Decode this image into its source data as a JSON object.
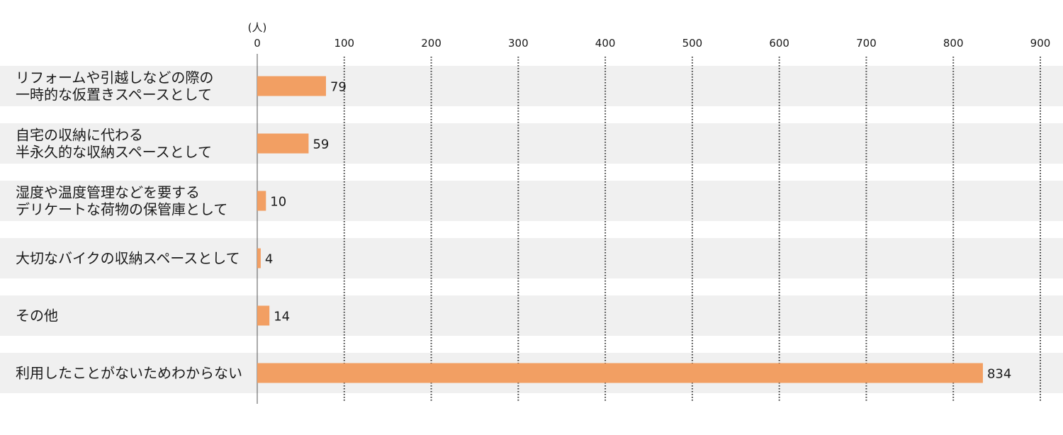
{
  "chart_data": {
    "type": "bar",
    "orientation": "horizontal",
    "unit": "(人)",
    "categories": [
      [
        "リフォームや引越しなどの際の",
        "一時的な仮置きスペースとして"
      ],
      [
        "自宅の収納に代わる",
        "半永久的な収納スペースとして"
      ],
      [
        "湿度や温度管理などを要する",
        "デリケートな荷物の保管庫として"
      ],
      [
        "大切なバイクの収納スペースとして"
      ],
      [
        "その他"
      ],
      [
        "利用したことがないためわからない"
      ]
    ],
    "values": [
      79,
      59,
      10,
      4,
      14,
      834
    ],
    "xlim": [
      0,
      900
    ],
    "ticks": [
      0,
      100,
      200,
      300,
      400,
      500,
      600,
      700,
      800,
      900
    ],
    "grid": true,
    "legend": "none",
    "colors": {
      "bar": "#F29F63",
      "band": "#F0F0F0",
      "grid": "#333333",
      "axis": "#555555"
    }
  }
}
